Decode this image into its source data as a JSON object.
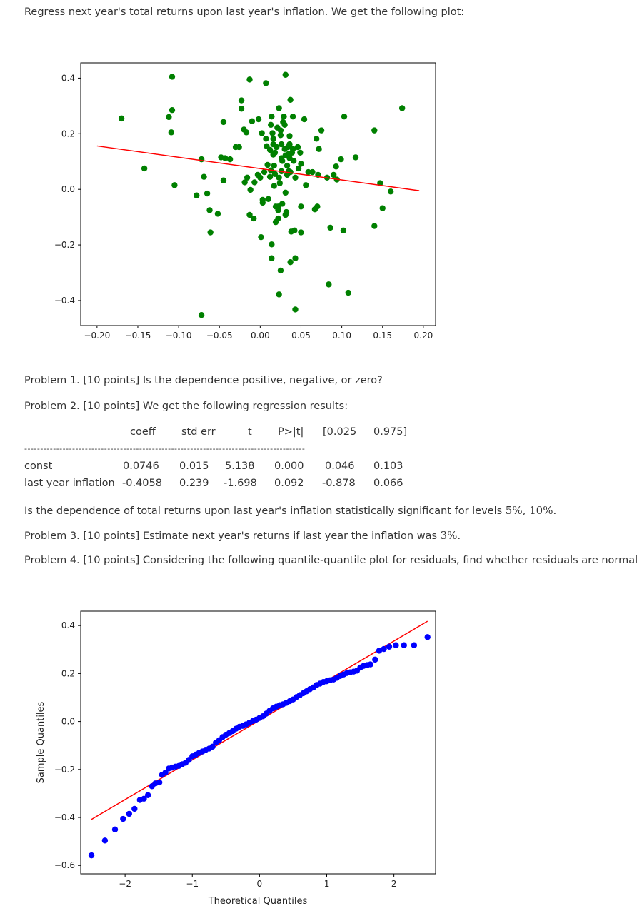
{
  "intro": "Regress next year's total returns upon last year's inflation. We get the following plot:",
  "problem1": "Problem 1. [10 points] Is the dependence positive, negative, or zero?",
  "problem2": "Problem 2. [10 points] We get the following regression results:",
  "regression": {
    "headers": [
      "coeff",
      "std err",
      "t",
      "P>|t|",
      "[0.025",
      "0.975]"
    ],
    "separator": "----------------------------------------------------------------------------------------",
    "rows": [
      {
        "label": "const",
        "values": [
          "0.0746",
          "0.015",
          "5.138",
          "0.000",
          "0.046",
          "0.103"
        ]
      },
      {
        "label": "last year inflation",
        "values": [
          "-0.4058",
          "0.239",
          "-1.698",
          "0.092",
          "-0.878",
          "0.066"
        ]
      }
    ]
  },
  "significance_question": "Is the dependence of total returns upon last year's inflation statistically significant for levels",
  "significance_levels": "5%, 10%.",
  "problem3_text": "Problem 3. [10 points] Estimate next year's returns if last year the inflation was",
  "problem3_value": "3%.",
  "problem4": "Problem 4. [10 points] Considering the following quantile-quantile plot for residuals, find whether residuals are normal:",
  "chart_data": [
    {
      "type": "scatter",
      "title": "",
      "xlabel": "",
      "ylabel": "",
      "xlim": [
        -0.22,
        0.215
      ],
      "ylim": [
        -0.49,
        0.455
      ],
      "xticks": [
        "−0.20",
        "−0.15",
        "−0.10",
        "−0.05",
        "0.00",
        "0.05",
        "0.10",
        "0.15",
        "0.20"
      ],
      "xtick_values": [
        -0.2,
        -0.15,
        -0.1,
        -0.05,
        0.0,
        0.05,
        0.1,
        0.15,
        0.2
      ],
      "yticks": [
        "−0.4",
        "−0.2",
        "0.0",
        "0.2",
        "0.4"
      ],
      "ytick_values": [
        -0.4,
        -0.2,
        0.0,
        0.2,
        0.4
      ],
      "point_color": "#008000",
      "line_color": "#ff0000",
      "fit_line": {
        "x": [
          -0.2,
          0.195
        ],
        "y": [
          0.156,
          -0.005
        ]
      },
      "points": [
        [
          -0.17,
          0.255
        ],
        [
          -0.142,
          0.075
        ],
        [
          -0.108,
          0.405
        ],
        [
          -0.112,
          0.26
        ],
        [
          -0.108,
          0.285
        ],
        [
          -0.109,
          0.205
        ],
        [
          -0.105,
          0.015
        ],
        [
          -0.078,
          -0.022
        ],
        [
          -0.072,
          -0.452
        ],
        [
          -0.072,
          0.108
        ],
        [
          -0.069,
          0.045
        ],
        [
          -0.065,
          -0.015
        ],
        [
          -0.062,
          -0.075
        ],
        [
          -0.061,
          -0.155
        ],
        [
          -0.052,
          -0.088
        ],
        [
          -0.048,
          0.115
        ],
        [
          -0.045,
          0.242
        ],
        [
          -0.045,
          0.032
        ],
        [
          -0.043,
          0.112
        ],
        [
          -0.037,
          0.108
        ],
        [
          -0.03,
          0.152
        ],
        [
          -0.026,
          0.152
        ],
        [
          -0.023,
          0.32
        ],
        [
          -0.023,
          0.29
        ],
        [
          -0.02,
          0.215
        ],
        [
          -0.019,
          0.025
        ],
        [
          -0.017,
          0.205
        ],
        [
          -0.016,
          0.042
        ],
        [
          -0.013,
          0.395
        ],
        [
          -0.013,
          -0.092
        ],
        [
          -0.012,
          -0.002
        ],
        [
          -0.01,
          0.245
        ],
        [
          -0.008,
          -0.105
        ],
        [
          -0.007,
          0.025
        ],
        [
          -0.003,
          0.052
        ],
        [
          -0.002,
          0.252
        ],
        [
          0.0,
          0.042
        ],
        [
          0.002,
          0.202
        ],
        [
          0.001,
          -0.172
        ],
        [
          0.003,
          -0.038
        ],
        [
          0.003,
          -0.048
        ],
        [
          0.005,
          0.062
        ],
        [
          0.007,
          0.382
        ],
        [
          0.007,
          0.182
        ],
        [
          0.008,
          0.155
        ],
        [
          0.009,
          0.088
        ],
        [
          0.01,
          -0.035
        ],
        [
          0.012,
          0.045
        ],
        [
          0.012,
          0.142
        ],
        [
          0.013,
          0.232
        ],
        [
          0.013,
          0.068
        ],
        [
          0.014,
          -0.248
        ],
        [
          0.014,
          0.262
        ],
        [
          0.014,
          -0.198
        ],
        [
          0.015,
          0.202
        ],
        [
          0.016,
          0.182
        ],
        [
          0.016,
          0.162
        ],
        [
          0.016,
          0.125
        ],
        [
          0.017,
          0.085
        ],
        [
          0.017,
          0.012
        ],
        [
          0.018,
          0.132
        ],
        [
          0.018,
          0.055
        ],
        [
          0.019,
          -0.062
        ],
        [
          0.019,
          -0.118
        ],
        [
          0.02,
          0.152
        ],
        [
          0.021,
          0.222
        ],
        [
          0.022,
          -0.062
        ],
        [
          0.022,
          -0.105
        ],
        [
          0.022,
          -0.075
        ],
        [
          0.023,
          0.292
        ],
        [
          0.023,
          -0.378
        ],
        [
          0.023,
          0.042
        ],
        [
          0.024,
          0.022
        ],
        [
          0.025,
          0.212
        ],
        [
          0.025,
          0.195
        ],
        [
          0.025,
          -0.292
        ],
        [
          0.026,
          0.162
        ],
        [
          0.026,
          0.112
        ],
        [
          0.026,
          0.065
        ],
        [
          0.027,
          0.102
        ],
        [
          0.027,
          -0.052
        ],
        [
          0.028,
          0.242
        ],
        [
          0.029,
          0.262
        ],
        [
          0.03,
          0.232
        ],
        [
          0.03,
          0.145
        ],
        [
          0.031,
          0.122
        ],
        [
          0.031,
          -0.012
        ],
        [
          0.031,
          0.412
        ],
        [
          0.031,
          -0.092
        ],
        [
          0.032,
          -0.082
        ],
        [
          0.033,
          0.085
        ],
        [
          0.033,
          0.052
        ],
        [
          0.034,
          0.152
        ],
        [
          0.035,
          0.065
        ],
        [
          0.035,
          0.128
        ],
        [
          0.035,
          0.122
        ],
        [
          0.036,
          0.112
        ],
        [
          0.036,
          0.162
        ],
        [
          0.036,
          0.192
        ],
        [
          0.037,
          0.322
        ],
        [
          0.037,
          0.062
        ],
        [
          0.037,
          -0.262
        ],
        [
          0.038,
          -0.152
        ],
        [
          0.039,
          0.132
        ],
        [
          0.04,
          0.145
        ],
        [
          0.04,
          0.262
        ],
        [
          0.041,
          0.102
        ],
        [
          0.042,
          -0.148
        ],
        [
          0.043,
          0.042
        ],
        [
          0.043,
          -0.432
        ],
        [
          0.043,
          -0.248
        ],
        [
          0.046,
          0.152
        ],
        [
          0.047,
          0.075
        ],
        [
          0.049,
          0.132
        ],
        [
          0.05,
          -0.155
        ],
        [
          0.05,
          0.092
        ],
        [
          0.05,
          -0.062
        ],
        [
          0.054,
          0.252
        ],
        [
          0.056,
          0.015
        ],
        [
          0.059,
          0.062
        ],
        [
          0.064,
          0.062
        ],
        [
          0.067,
          -0.072
        ],
        [
          0.069,
          0.182
        ],
        [
          0.07,
          -0.062
        ],
        [
          0.071,
          0.052
        ],
        [
          0.072,
          0.145
        ],
        [
          0.075,
          0.212
        ],
        [
          0.082,
          0.042
        ],
        [
          0.084,
          -0.342
        ],
        [
          0.086,
          -0.138
        ],
        [
          0.09,
          0.052
        ],
        [
          0.093,
          0.082
        ],
        [
          0.094,
          0.035
        ],
        [
          0.099,
          0.108
        ],
        [
          0.102,
          -0.148
        ],
        [
          0.103,
          0.262
        ],
        [
          0.108,
          -0.372
        ],
        [
          0.117,
          0.115
        ],
        [
          0.14,
          0.212
        ],
        [
          0.14,
          -0.132
        ],
        [
          0.147,
          0.022
        ],
        [
          0.15,
          -0.068
        ],
        [
          0.16,
          -0.008
        ],
        [
          0.174,
          0.292
        ]
      ]
    },
    {
      "type": "scatter",
      "title": "",
      "xlabel": "Theoretical Quantiles",
      "ylabel": "Sample Quantiles",
      "xlim": [
        -2.66,
        2.62
      ],
      "ylim": [
        -0.635,
        0.46
      ],
      "xticks": [
        "−2",
        "−1",
        "0",
        "1",
        "2"
      ],
      "xtick_values": [
        -2,
        -1,
        0,
        1,
        2
      ],
      "yticks": [
        "−0.6",
        "−0.4",
        "−0.2",
        "0.0",
        "0.2",
        "0.4"
      ],
      "ytick_values": [
        -0.6,
        -0.4,
        -0.2,
        0.0,
        0.2,
        0.4
      ],
      "point_color": "#0000ff",
      "line_color": "#ff0000",
      "fit_line": {
        "x": [
          -2.5,
          2.5
        ],
        "y": [
          -0.408,
          0.418
        ]
      },
      "points": [
        [
          -2.5,
          -0.558
        ],
        [
          -2.3,
          -0.496
        ],
        [
          -2.15,
          -0.45
        ],
        [
          -2.03,
          -0.406
        ],
        [
          -1.94,
          -0.385
        ],
        [
          -1.86,
          -0.364
        ],
        [
          -1.78,
          -0.327
        ],
        [
          -1.72,
          -0.322
        ],
        [
          -1.66,
          -0.307
        ],
        [
          -1.6,
          -0.27
        ],
        [
          -1.55,
          -0.258
        ],
        [
          -1.49,
          -0.254
        ],
        [
          -1.45,
          -0.222
        ],
        [
          -1.4,
          -0.213
        ],
        [
          -1.35,
          -0.196
        ],
        [
          -1.3,
          -0.192
        ],
        [
          -1.25,
          -0.188
        ],
        [
          -1.2,
          -0.185
        ],
        [
          -1.15,
          -0.178
        ],
        [
          -1.1,
          -0.172
        ],
        [
          -1.05,
          -0.16
        ],
        [
          -1.0,
          -0.145
        ],
        [
          -0.95,
          -0.138
        ],
        [
          -0.9,
          -0.131
        ],
        [
          -0.85,
          -0.125
        ],
        [
          -0.8,
          -0.118
        ],
        [
          -0.75,
          -0.113
        ],
        [
          -0.7,
          -0.105
        ],
        [
          -0.65,
          -0.088
        ],
        [
          -0.6,
          -0.078
        ],
        [
          -0.55,
          -0.065
        ],
        [
          -0.5,
          -0.055
        ],
        [
          -0.45,
          -0.048
        ],
        [
          -0.4,
          -0.04
        ],
        [
          -0.35,
          -0.03
        ],
        [
          -0.3,
          -0.022
        ],
        [
          -0.25,
          -0.018
        ],
        [
          -0.2,
          -0.012
        ],
        [
          -0.15,
          -0.005
        ],
        [
          -0.1,
          0.002
        ],
        [
          -0.05,
          0.008
        ],
        [
          0.0,
          0.015
        ],
        [
          0.05,
          0.022
        ],
        [
          0.1,
          0.033
        ],
        [
          0.15,
          0.045
        ],
        [
          0.2,
          0.055
        ],
        [
          0.25,
          0.062
        ],
        [
          0.3,
          0.068
        ],
        [
          0.35,
          0.072
        ],
        [
          0.4,
          0.078
        ],
        [
          0.45,
          0.085
        ],
        [
          0.5,
          0.092
        ],
        [
          0.55,
          0.102
        ],
        [
          0.6,
          0.11
        ],
        [
          0.65,
          0.118
        ],
        [
          0.7,
          0.126
        ],
        [
          0.75,
          0.135
        ],
        [
          0.8,
          0.142
        ],
        [
          0.85,
          0.152
        ],
        [
          0.9,
          0.158
        ],
        [
          0.95,
          0.165
        ],
        [
          1.0,
          0.168
        ],
        [
          1.05,
          0.172
        ],
        [
          1.1,
          0.175
        ],
        [
          1.15,
          0.182
        ],
        [
          1.2,
          0.19
        ],
        [
          1.25,
          0.196
        ],
        [
          1.3,
          0.202
        ],
        [
          1.35,
          0.205
        ],
        [
          1.4,
          0.208
        ],
        [
          1.45,
          0.212
        ],
        [
          1.5,
          0.225
        ],
        [
          1.55,
          0.232
        ],
        [
          1.6,
          0.235
        ],
        [
          1.65,
          0.238
        ],
        [
          1.72,
          0.258
        ],
        [
          1.78,
          0.295
        ],
        [
          1.85,
          0.302
        ],
        [
          1.93,
          0.312
        ],
        [
          2.03,
          0.318
        ],
        [
          2.15,
          0.318
        ],
        [
          2.3,
          0.318
        ],
        [
          2.5,
          0.352
        ]
      ]
    }
  ]
}
